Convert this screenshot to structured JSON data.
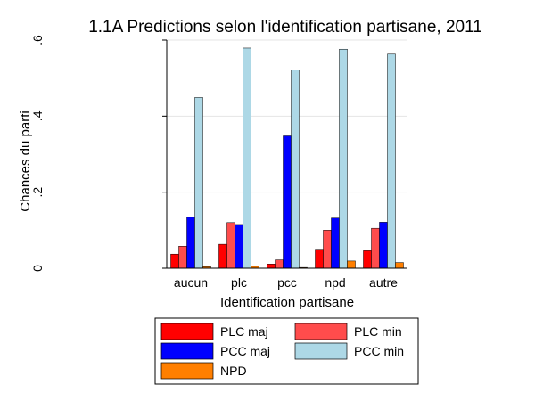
{
  "chart_data": {
    "type": "bar",
    "title": "1.1A Predictions selon l'identification partisane, 2011",
    "xlabel": "Identification partisane",
    "ylabel": "Chances du parti",
    "categories": [
      "aucun",
      "plc",
      "pcc",
      "npd",
      "autre"
    ],
    "ylim": [
      0,
      0.6
    ],
    "yticks": [
      0,
      0.2,
      0.4,
      0.6
    ],
    "ytick_labels": [
      "0",
      ".2",
      ".4",
      ".6"
    ],
    "grid": true,
    "legend_position": "bottom",
    "series": [
      {
        "name": "PLC maj",
        "color": "#ff0000",
        "values": [
          0.037,
          0.063,
          0.011,
          0.05,
          0.046
        ]
      },
      {
        "name": "PLC min",
        "color": "#ff4c4c",
        "values": [
          0.058,
          0.12,
          0.022,
          0.1,
          0.105
        ]
      },
      {
        "name": "PCC maj",
        "color": "#0000ff",
        "values": [
          0.134,
          0.115,
          0.348,
          0.132,
          0.121
        ]
      },
      {
        "name": "PCC min",
        "color": "#add8e6",
        "values": [
          0.449,
          0.579,
          0.522,
          0.576,
          0.563
        ]
      },
      {
        "name": "NPD",
        "color": "#ff7f00",
        "values": [
          0.004,
          0.005,
          0.002,
          0.019,
          0.015
        ]
      }
    ]
  }
}
